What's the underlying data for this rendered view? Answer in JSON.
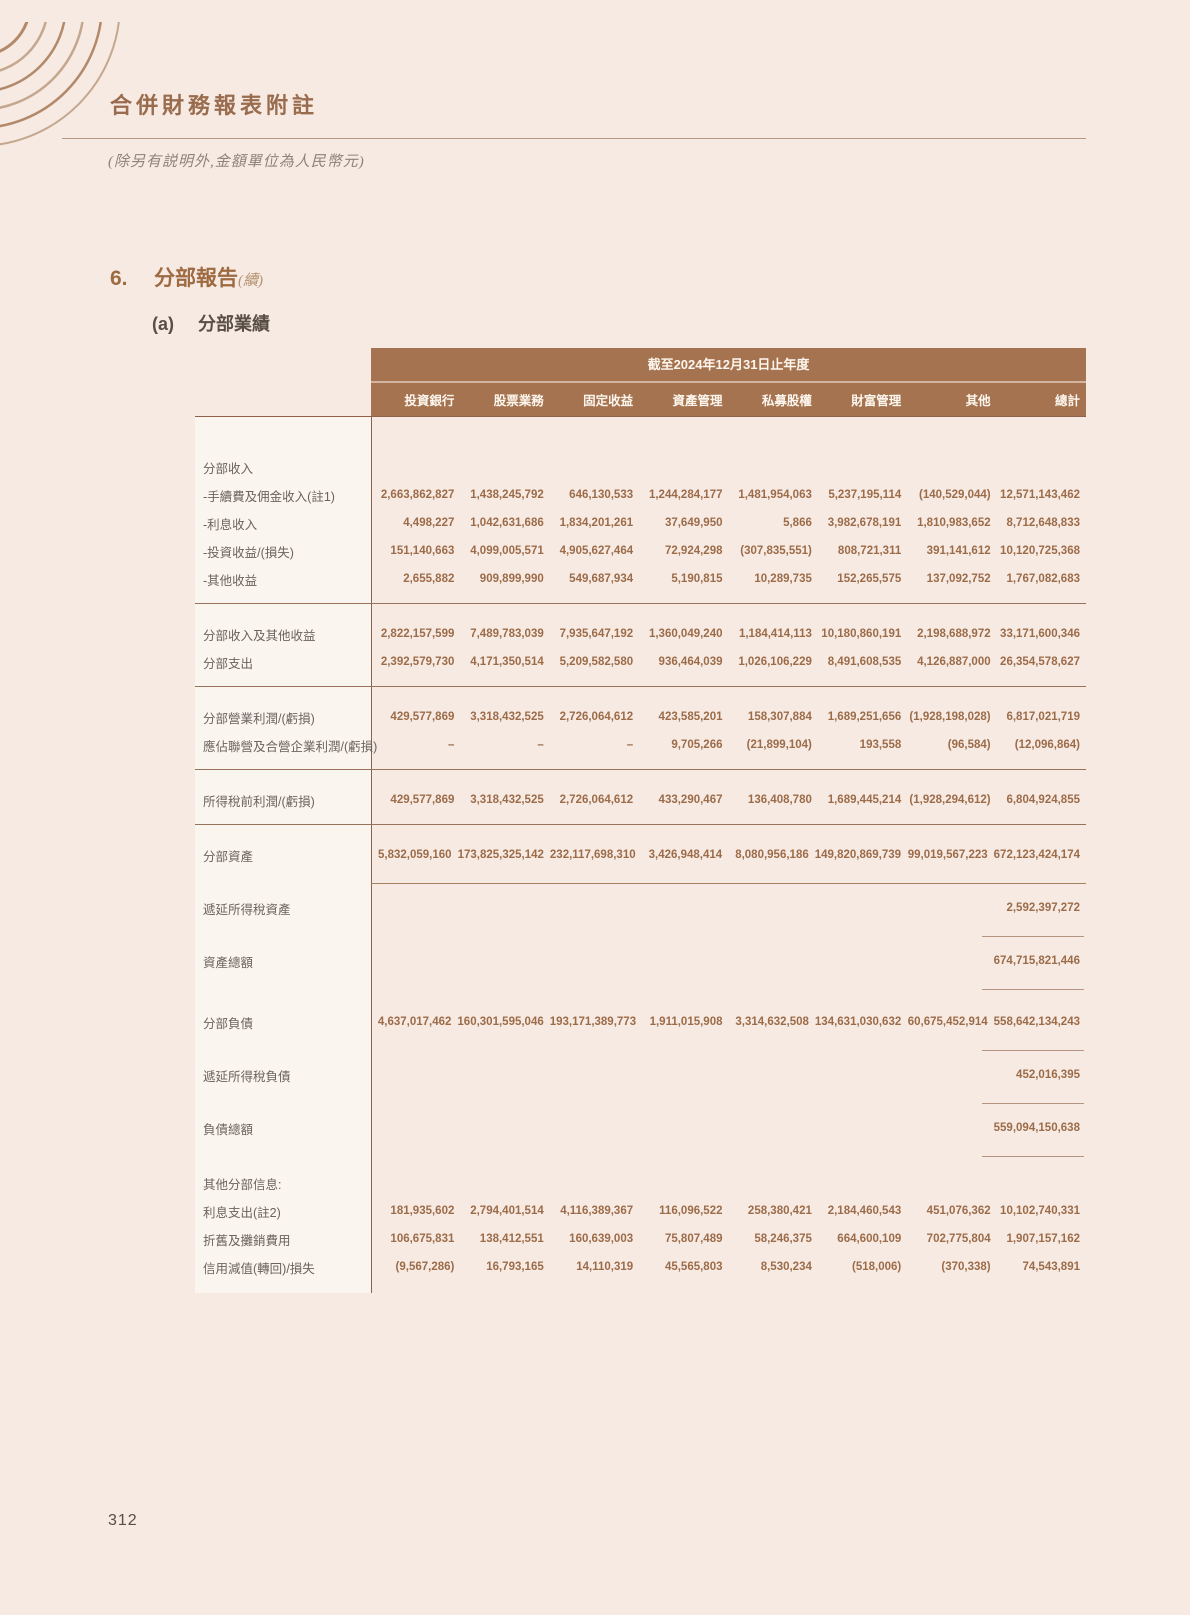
{
  "page": {
    "title": "合併財務報表附註",
    "subtitle": "(除另有説明外,金額單位為人民幣元)",
    "page_number": "312"
  },
  "section": {
    "number": "6.",
    "title": "分部報告",
    "suffix": "(續)",
    "sub_label": "(a)",
    "sub_title": "分部業績"
  },
  "table": {
    "period_header": "截至2024年12月31日止年度",
    "columns": [
      "投資銀行",
      "股票業務",
      "固定收益",
      "資產管理",
      "私募股權",
      "財富管理",
      "其他",
      "總計"
    ],
    "rows": [
      {
        "label": "分部收入",
        "section": true,
        "gap": "g22"
      },
      {
        "label": "-手續費及佣金收入(註1)",
        "values": [
          "2,663,862,827",
          "1,438,245,792",
          "646,130,533",
          "1,244,284,177",
          "1,481,954,063",
          "5,237,195,114",
          "(140,529,044)",
          "12,571,143,462"
        ]
      },
      {
        "label": "-利息收入",
        "values": [
          "4,498,227",
          "1,042,631,686",
          "1,834,201,261",
          "37,649,950",
          "5,866",
          "3,982,678,191",
          "1,810,983,652",
          "8,712,648,833"
        ]
      },
      {
        "label": "-投資收益/(損失)",
        "values": [
          "151,140,663",
          "4,099,005,571",
          "4,905,627,464",
          "72,924,298",
          "(307,835,551)",
          "808,721,311",
          "391,141,612",
          "10,120,725,368"
        ]
      },
      {
        "label": "-其他收益",
        "values": [
          "2,655,882",
          "909,899,990",
          "549,687,934",
          "5,190,815",
          "10,289,735",
          "152,265,575",
          "137,092,752",
          "1,767,082,683"
        ],
        "after": "rule-full"
      },
      {
        "label": "分部收入及其他收益",
        "values": [
          "2,822,157,599",
          "7,489,783,039",
          "7,935,647,192",
          "1,360,049,240",
          "1,184,414,113",
          "10,180,860,191",
          "2,198,688,972",
          "33,171,600,346"
        ]
      },
      {
        "label": "分部支出",
        "values": [
          "2,392,579,730",
          "4,171,350,514",
          "5,209,582,580",
          "936,464,039",
          "1,026,106,229",
          "8,491,608,535",
          "4,126,887,000",
          "26,354,578,627"
        ],
        "after": "rule-full"
      },
      {
        "label": "分部營業利潤/(虧損)",
        "values": [
          "429,577,869",
          "3,318,432,525",
          "2,726,064,612",
          "423,585,201",
          "158,307,884",
          "1,689,251,656",
          "(1,928,198,028)",
          "6,817,021,719"
        ]
      },
      {
        "label": "應佔聯營及合營企業利潤/(虧損)",
        "values": [
          "–",
          "–",
          "–",
          "9,705,266",
          "(21,899,104)",
          "193,558",
          "(96,584)",
          "(12,096,864)"
        ],
        "after": "rule-full"
      },
      {
        "label": "所得稅前利潤/(虧損)",
        "values": [
          "429,577,869",
          "3,318,432,525",
          "2,726,064,612",
          "433,290,467",
          "136,408,780",
          "1,689,445,214",
          "(1,928,294,612)",
          "6,804,924,855"
        ],
        "gap": "g12",
        "after": "rule-full"
      },
      {
        "label": "分部資產",
        "values": [
          "5,832,059,160",
          "173,825,325,142",
          "232,117,698,310",
          "3,426,948,414",
          "8,080,956,186",
          "149,820,869,739",
          "99,019,567,223",
          "672,123,424,174"
        ],
        "gap": "g12",
        "after": "rule-data"
      },
      {
        "label": "遞延所得稅資產",
        "values": [
          "",
          "",
          "",
          "",
          "",
          "",
          "",
          "2,592,397,272"
        ],
        "after": "rule-total"
      },
      {
        "label": "資產總額",
        "values": [
          "",
          "",
          "",
          "",
          "",
          "",
          "",
          "674,715,821,446"
        ],
        "after": "rule-total"
      },
      {
        "label": "分部負債",
        "values": [
          "4,637,017,462",
          "160,301,595,046",
          "193,171,389,773",
          "1,911,015,908",
          "3,314,632,508",
          "134,631,030,632",
          "60,675,452,914",
          "558,642,134,243"
        ],
        "gap": "g18",
        "after": "rule-total"
      },
      {
        "label": "遞延所得稅負債",
        "values": [
          "",
          "",
          "",
          "",
          "",
          "",
          "",
          "452,016,395"
        ],
        "after": "rule-total"
      },
      {
        "label": "負債總額",
        "values": [
          "",
          "",
          "",
          "",
          "",
          "",
          "",
          "559,094,150,638"
        ],
        "after": "rule-total"
      },
      {
        "label": "其他分部信息:",
        "section": true,
        "gap": "g12"
      },
      {
        "label": "利息支出(註2)",
        "values": [
          "181,935,602",
          "2,794,401,514",
          "4,116,389,367",
          "116,096,522",
          "258,380,421",
          "2,184,460,543",
          "451,076,362",
          "10,102,740,331"
        ]
      },
      {
        "label": "折舊及攤銷費用",
        "values": [
          "106,675,831",
          "138,412,551",
          "160,639,003",
          "75,807,489",
          "58,246,375",
          "664,600,109",
          "702,775,804",
          "1,907,157,162"
        ]
      },
      {
        "label": "信用減值(轉回)/損失",
        "values": [
          "(9,567,286)",
          "16,793,165",
          "14,110,319",
          "45,565,803",
          "8,530,234",
          "(518,006)",
          "(370,338)",
          "74,543,891"
        ]
      }
    ]
  }
}
